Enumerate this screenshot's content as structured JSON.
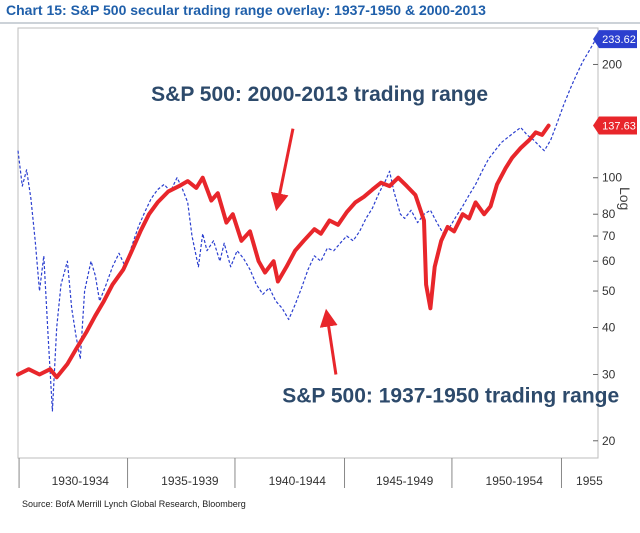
{
  "chart_data": {
    "type": "line",
    "title": "Chart 15: S&P 500 secular trading range overlay: 1937-1950 & 2000-2013",
    "source": "Source: BofA Merrill Lynch Global Research, Bloomberg",
    "x_range": [
      1929,
      1956
    ],
    "x_ticks": [
      {
        "label": "1930-1934",
        "center": 1931.9
      },
      {
        "label": "1935-1939",
        "center": 1937.0
      },
      {
        "label": "1940-1944",
        "center": 1942.0
      },
      {
        "label": "1945-1949",
        "center": 1947.0
      },
      {
        "label": "1950-1954",
        "center": 1952.1
      },
      {
        "label": "1955",
        "center": 1955.6
      }
    ],
    "x_separators": [
      1929.05,
      1934.1,
      1939.1,
      1944.2,
      1949.2,
      1954.3
    ],
    "y_scale": "log",
    "y_range": [
      18,
      250
    ],
    "y_ticks": [
      20,
      30,
      40,
      50,
      60,
      70,
      80,
      100,
      200
    ],
    "y_axis_label": "Log",
    "series": [
      {
        "name": "S&P 500: 2000-2013 trading range",
        "color": "#e8262b",
        "style": "solid",
        "end_value": 137.63,
        "end_label": "137.63",
        "points": [
          [
            1929.0,
            30
          ],
          [
            1929.5,
            31
          ],
          [
            1930.0,
            30
          ],
          [
            1930.5,
            31
          ],
          [
            1930.8,
            29.5
          ],
          [
            1931.3,
            32
          ],
          [
            1931.7,
            35
          ],
          [
            1932.2,
            39
          ],
          [
            1932.6,
            43
          ],
          [
            1933.0,
            47
          ],
          [
            1933.4,
            52
          ],
          [
            1933.9,
            57
          ],
          [
            1934.3,
            64
          ],
          [
            1934.7,
            72
          ],
          [
            1935.1,
            80
          ],
          [
            1935.5,
            86
          ],
          [
            1936.0,
            92
          ],
          [
            1936.5,
            95
          ],
          [
            1936.9,
            98
          ],
          [
            1937.3,
            94
          ],
          [
            1937.6,
            100
          ],
          [
            1938.0,
            87
          ],
          [
            1938.3,
            91
          ],
          [
            1938.7,
            76
          ],
          [
            1939.0,
            80
          ],
          [
            1939.4,
            68
          ],
          [
            1939.8,
            72
          ],
          [
            1940.2,
            60
          ],
          [
            1940.5,
            56
          ],
          [
            1940.9,
            60
          ],
          [
            1941.1,
            53
          ],
          [
            1941.5,
            58
          ],
          [
            1941.9,
            64
          ],
          [
            1942.3,
            68
          ],
          [
            1942.8,
            73
          ],
          [
            1943.1,
            71
          ],
          [
            1943.5,
            77
          ],
          [
            1943.9,
            75
          ],
          [
            1944.3,
            81
          ],
          [
            1944.7,
            86
          ],
          [
            1945.1,
            89
          ],
          [
            1945.5,
            93
          ],
          [
            1945.9,
            97
          ],
          [
            1946.3,
            95
          ],
          [
            1946.7,
            100
          ],
          [
            1947.1,
            95
          ],
          [
            1947.5,
            90
          ],
          [
            1947.9,
            77
          ],
          [
            1948.0,
            52
          ],
          [
            1948.2,
            45
          ],
          [
            1948.4,
            58
          ],
          [
            1948.7,
            68
          ],
          [
            1949.0,
            74
          ],
          [
            1949.3,
            72
          ],
          [
            1949.7,
            80
          ],
          [
            1950.0,
            78
          ],
          [
            1950.3,
            86
          ],
          [
            1950.7,
            80
          ],
          [
            1951.0,
            84
          ],
          [
            1951.3,
            96
          ],
          [
            1951.7,
            106
          ],
          [
            1952.0,
            113
          ],
          [
            1952.4,
            120
          ],
          [
            1952.8,
            126
          ],
          [
            1953.1,
            132
          ],
          [
            1953.4,
            130
          ],
          [
            1953.7,
            137.63
          ]
        ]
      },
      {
        "name": "S&P 500: 1937-1950 trading range",
        "color": "#2b3fcf",
        "style": "dashed",
        "end_value": 233.62,
        "end_label": "233.62",
        "points": [
          [
            1929.0,
            118
          ],
          [
            1929.2,
            95
          ],
          [
            1929.4,
            105
          ],
          [
            1929.6,
            88
          ],
          [
            1929.8,
            68
          ],
          [
            1930.0,
            50
          ],
          [
            1930.2,
            62
          ],
          [
            1930.4,
            38
          ],
          [
            1930.6,
            24
          ],
          [
            1930.8,
            40
          ],
          [
            1931.0,
            52
          ],
          [
            1931.3,
            60
          ],
          [
            1931.5,
            45
          ],
          [
            1931.7,
            38
          ],
          [
            1931.9,
            33
          ],
          [
            1932.1,
            50
          ],
          [
            1932.4,
            60
          ],
          [
            1932.6,
            55
          ],
          [
            1932.8,
            47
          ],
          [
            1933.1,
            52
          ],
          [
            1933.4,
            58
          ],
          [
            1933.7,
            63
          ],
          [
            1934.0,
            58
          ],
          [
            1934.3,
            66
          ],
          [
            1934.6,
            74
          ],
          [
            1934.9,
            81
          ],
          [
            1935.2,
            88
          ],
          [
            1935.5,
            93
          ],
          [
            1935.8,
            96
          ],
          [
            1936.1,
            92
          ],
          [
            1936.4,
            100
          ],
          [
            1936.6,
            95
          ],
          [
            1936.9,
            86
          ],
          [
            1937.1,
            70
          ],
          [
            1937.4,
            58
          ],
          [
            1937.6,
            71
          ],
          [
            1937.8,
            64
          ],
          [
            1938.1,
            68
          ],
          [
            1938.4,
            60
          ],
          [
            1938.6,
            67
          ],
          [
            1938.9,
            58
          ],
          [
            1939.2,
            64
          ],
          [
            1939.5,
            61
          ],
          [
            1939.8,
            57
          ],
          [
            1940.1,
            52
          ],
          [
            1940.4,
            49
          ],
          [
            1940.7,
            51
          ],
          [
            1941.0,
            47
          ],
          [
            1941.3,
            45
          ],
          [
            1941.6,
            42
          ],
          [
            1941.9,
            46
          ],
          [
            1942.2,
            51
          ],
          [
            1942.5,
            57
          ],
          [
            1942.8,
            62
          ],
          [
            1943.1,
            60
          ],
          [
            1943.4,
            65
          ],
          [
            1943.7,
            64
          ],
          [
            1944.0,
            67
          ],
          [
            1944.3,
            70
          ],
          [
            1944.6,
            68
          ],
          [
            1944.9,
            72
          ],
          [
            1945.2,
            78
          ],
          [
            1945.5,
            83
          ],
          [
            1945.8,
            91
          ],
          [
            1946.1,
            98
          ],
          [
            1946.3,
            104
          ],
          [
            1946.5,
            92
          ],
          [
            1946.8,
            80
          ],
          [
            1947.0,
            78
          ],
          [
            1947.3,
            82
          ],
          [
            1947.6,
            76
          ],
          [
            1947.9,
            80
          ],
          [
            1948.2,
            82
          ],
          [
            1948.5,
            76
          ],
          [
            1948.8,
            71
          ],
          [
            1949.1,
            74
          ],
          [
            1949.4,
            79
          ],
          [
            1949.7,
            84
          ],
          [
            1950.0,
            90
          ],
          [
            1950.3,
            96
          ],
          [
            1950.6,
            104
          ],
          [
            1950.9,
            112
          ],
          [
            1951.2,
            118
          ],
          [
            1951.5,
            124
          ],
          [
            1951.8,
            128
          ],
          [
            1952.1,
            132
          ],
          [
            1952.4,
            136
          ],
          [
            1952.7,
            130
          ],
          [
            1953.0,
            126
          ],
          [
            1953.3,
            121
          ],
          [
            1953.5,
            118
          ],
          [
            1953.8,
            126
          ],
          [
            1954.1,
            140
          ],
          [
            1954.4,
            156
          ],
          [
            1954.7,
            172
          ],
          [
            1955.0,
            188
          ],
          [
            1955.3,
            204
          ],
          [
            1955.6,
            218
          ],
          [
            1955.9,
            233.62
          ]
        ]
      }
    ],
    "annotations": [
      {
        "text": "S&P 500: 2000-2013 trading range",
        "color": "#2d4a6b"
      },
      {
        "text": "S&P 500: 1937-1950 trading range",
        "color": "#2d4a6b"
      }
    ]
  }
}
